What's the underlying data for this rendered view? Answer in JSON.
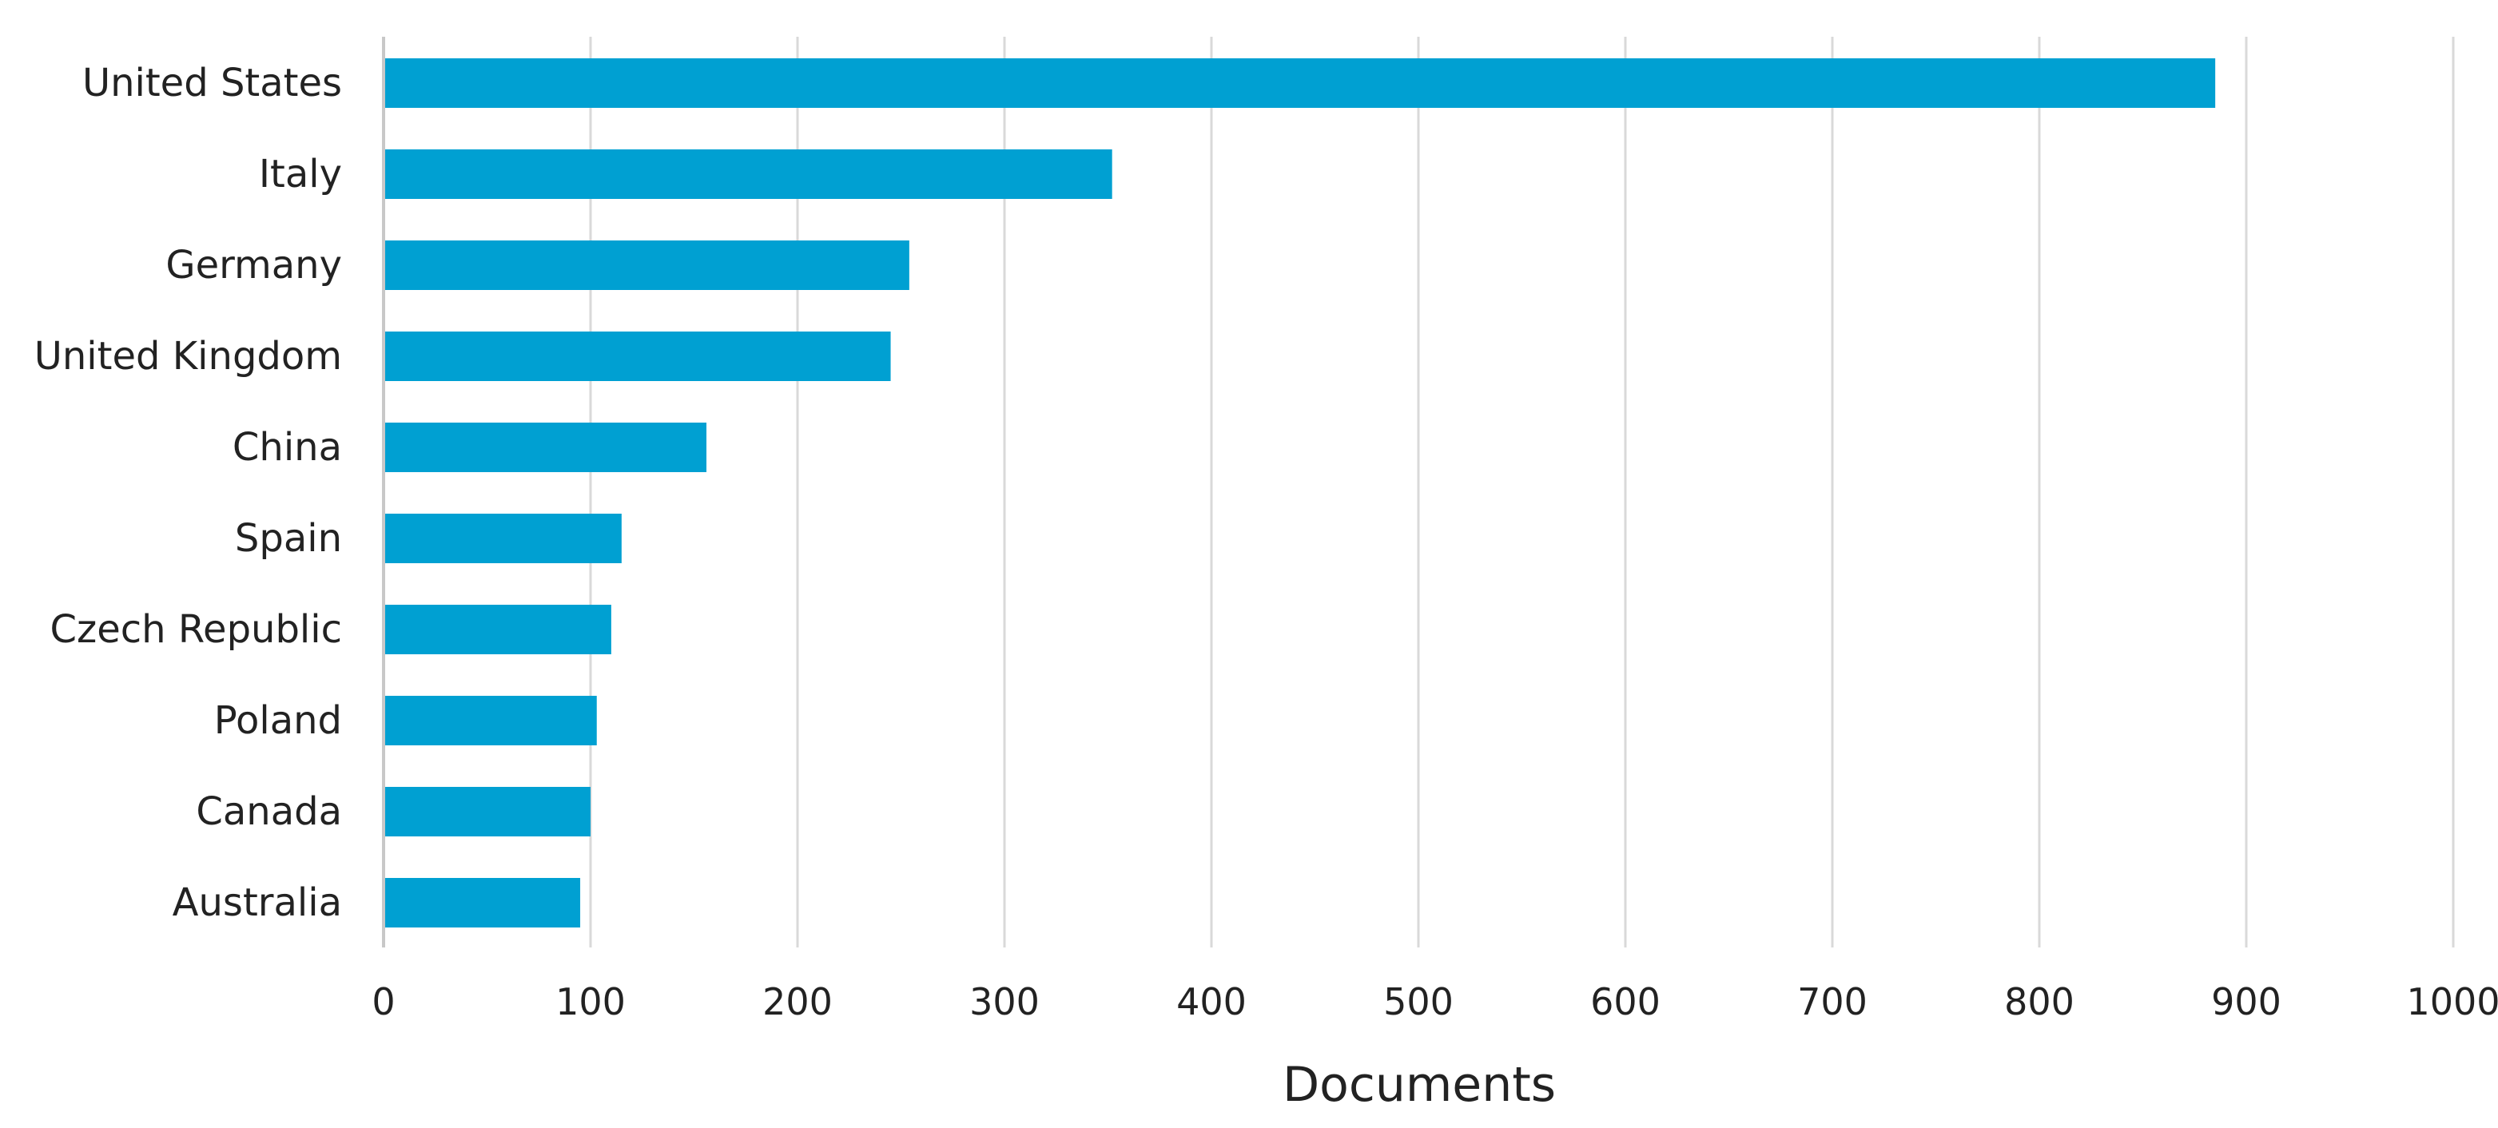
{
  "chart_data": {
    "type": "bar",
    "orientation": "horizontal",
    "title": "",
    "xlabel": "Documents",
    "ylabel": "",
    "categories": [
      "United States",
      "Italy",
      "Germany",
      "United Kingdom",
      "China",
      "Spain",
      "Czech Republic",
      "Poland",
      "Canada",
      "Australia"
    ],
    "values": [
      885,
      352,
      254,
      245,
      156,
      115,
      110,
      103,
      100,
      95
    ],
    "xlim": [
      0,
      1000
    ],
    "xticks": [
      "0",
      "100",
      "200",
      "300",
      "400",
      "500",
      "600",
      "700",
      "800",
      "900",
      "1000"
    ],
    "grid": "vertical",
    "legend": "none",
    "colors": {
      "bar": "#00a0d2",
      "grid": "#d9d9d9",
      "axis": "#c8c8c8"
    }
  }
}
